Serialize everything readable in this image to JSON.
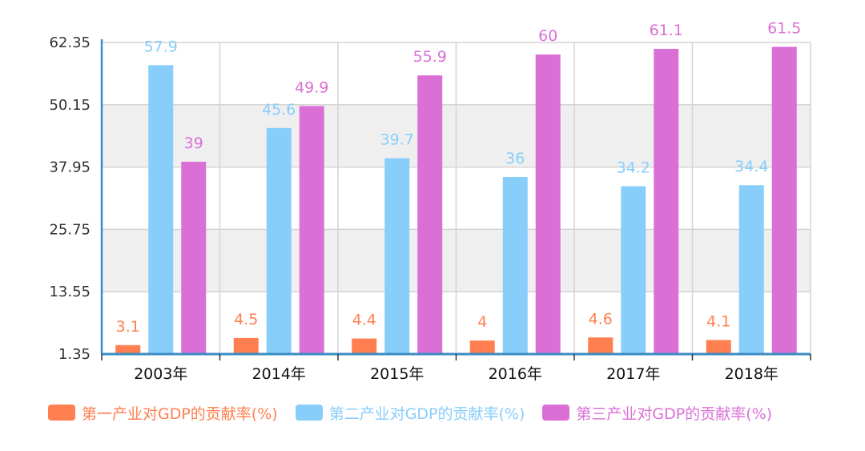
{
  "chart_data": {
    "type": "bar",
    "categories": [
      "2003年",
      "2014年",
      "2015年",
      "2016年",
      "2017年",
      "2018年"
    ],
    "series": [
      {
        "name": "第一产业对GDP的贡献率(%)",
        "values": [
          3.1,
          4.5,
          4.4,
          4,
          4.6,
          4.1
        ],
        "labels": [
          "3.1",
          "4.5",
          "4.4",
          "4",
          "4.6",
          "4.1"
        ],
        "color": "#ff7f50"
      },
      {
        "name": "第二产业对GDP的贡献率(%)",
        "values": [
          57.9,
          45.6,
          39.7,
          36,
          34.2,
          34.4
        ],
        "labels": [
          "57.9",
          "45.6",
          "39.7",
          "36",
          "34.2",
          "34.4"
        ],
        "color": "#87cefa"
      },
      {
        "name": "第三产业对GDP的贡献率(%)",
        "values": [
          39,
          49.9,
          55.9,
          60,
          61.1,
          61.5
        ],
        "labels": [
          "39",
          "49.9",
          "55.9",
          "60",
          "61.1",
          "61.5"
        ],
        "color": "#da70d6"
      }
    ],
    "yticks": [
      "1.35",
      "13.55",
      "25.75",
      "37.95",
      "50.15",
      "62.35"
    ],
    "ylim": [
      1.35,
      62.35
    ],
    "grid": true,
    "legend_position": "bottom",
    "axis_color": "#3b8cc4",
    "band_color": "#f0eff0"
  }
}
